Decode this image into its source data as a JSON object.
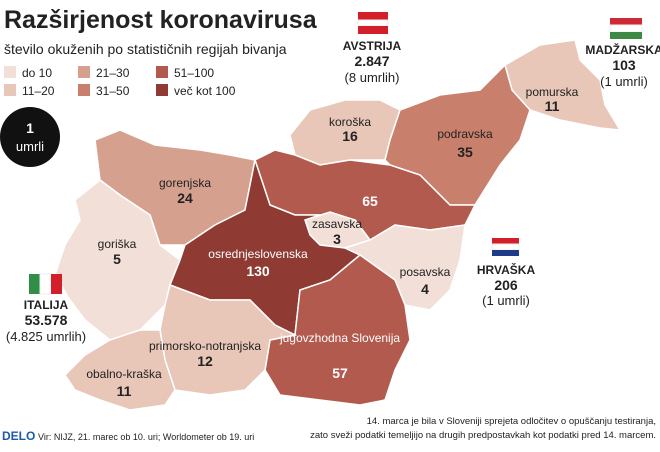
{
  "title": "Razširjenost koronavirusa",
  "subtitle": "število okuženih po statističnih regijah bivanja",
  "legend": [
    "do 10",
    "11–20",
    "21–30",
    "31–50",
    "51–100",
    "več kot 100"
  ],
  "badge": {
    "value": "1",
    "label": "umrli"
  },
  "regions": [
    {
      "name": "pomurska",
      "count": 11
    },
    {
      "name": "koroška",
      "count": 16
    },
    {
      "name": "podravska",
      "count": 35
    },
    {
      "count": 65
    },
    {
      "name": "zasavska",
      "count": 3
    },
    {
      "name": "gorenjska",
      "count": 24
    },
    {
      "name": "goriška",
      "count": 5
    },
    {
      "name": "osrednjeslovenska",
      "count": 130
    },
    {
      "name": "posavska",
      "count": 4
    },
    {
      "name": "jugovzhodna Slovenija",
      "count": 57
    },
    {
      "name": "primorsko-notranjska",
      "count": 12
    },
    {
      "name": "obalno-kraška",
      "count": 11
    }
  ],
  "countries": [
    {
      "name": "AVSTRIJA",
      "cases": "2.847",
      "deaths": "(8 umrlih)"
    },
    {
      "name": "MADŽARSKA",
      "cases": "103",
      "deaths": "(1 umrli)"
    },
    {
      "name": "HRVAŠKA",
      "cases": "206",
      "deaths": "(1 umrli)"
    },
    {
      "name": "ITALIJA",
      "cases": "53.578",
      "deaths": "(4.825 umrlih)"
    }
  ],
  "footer": {
    "brand": "DELO",
    "sources": "Vir: NIJZ, 21. marec ob 10. uri; Worldometer ob 19. uri",
    "note": [
      "14. marca je bila v Sloveniji sprejeta odločitev o opuščanju testiranja,",
      "zato sveži podatki temeljijo na drugih predpostavkah kot podatki pred 14. marcem."
    ]
  }
}
